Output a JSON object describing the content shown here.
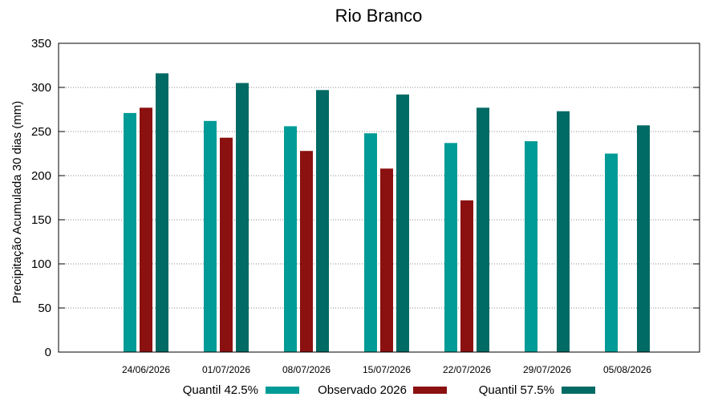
{
  "chart_data": {
    "type": "bar",
    "title": "Rio Branco",
    "xlabel": "",
    "ylabel": "Precipitação Acumulada 30 dias (mm)",
    "categories": [
      "24/06/2026",
      "01/07/2026",
      "08/07/2026",
      "15/07/2026",
      "22/07/2026",
      "29/07/2026",
      "05/08/2026"
    ],
    "series": [
      {
        "name": "Quantil 42.5%",
        "color": "#009b96",
        "values": [
          271,
          262,
          256,
          248,
          237,
          239,
          225
        ]
      },
      {
        "name": "Observado 2026",
        "color": "#8b1010",
        "values": [
          277,
          243,
          228,
          208,
          172,
          null,
          null
        ]
      },
      {
        "name": "Quantil 57.5%",
        "color": "#006a64",
        "values": [
          316,
          305,
          297,
          292,
          277,
          273,
          257
        ]
      }
    ],
    "ylim": [
      0,
      350
    ],
    "yticks": [
      0,
      50,
      100,
      150,
      200,
      250,
      300,
      350
    ],
    "grid": true,
    "legend_position": "bottom"
  }
}
